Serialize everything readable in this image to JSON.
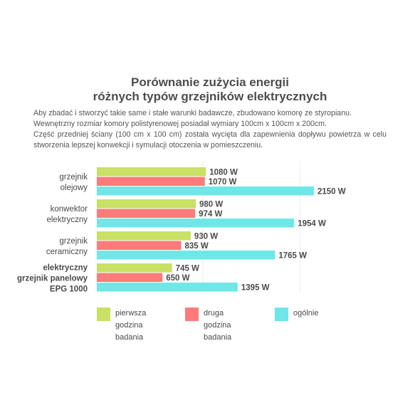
{
  "title_line1": "Porównanie zużycia energii",
  "title_line2": "różnych typów grzejników elektrycznych",
  "description": [
    "Aby zbadać i stworzyć takie same i stałe warunki badawcze, zbudowano komorę ze styropianu.",
    "Wewnętrzny rozmiar komory polistyrenowej posiadał wymiary 100cm x 100cm x 200cm.",
    "Część przedniej ściany (100 cm x 100 cm) została wycięta dla zapewnienia dopływu powietrza w celu stworzenia lepszej konwekcji i symulacji otoczenia w pomieszczeniu."
  ],
  "colors": {
    "first_hour": "#c8e063",
    "second_hour": "#ff7a7a",
    "total": "#6ee7e7"
  },
  "chart_data": {
    "type": "bar",
    "orientation": "horizontal",
    "unit": "W",
    "grid": true,
    "legend_position": "bottom",
    "xlim": [
      0,
      2400
    ],
    "categories": [
      {
        "lines": [
          "grzejnik",
          "olejowy"
        ],
        "bold": false
      },
      {
        "lines": [
          "konwektor",
          "elektryczny"
        ],
        "bold": false
      },
      {
        "lines": [
          "grzejnik",
          "ceramiczny"
        ],
        "bold": false
      },
      {
        "lines": [
          "elektryczny",
          "grzejnik panelowy",
          "EPG 1000"
        ],
        "bold": true
      }
    ],
    "series": [
      {
        "name": [
          "pierwsza",
          "godzina",
          "badania"
        ],
        "color_key": "first_hour",
        "values": [
          1080,
          980,
          930,
          745
        ]
      },
      {
        "name": [
          "druga",
          "godzina",
          "badania"
        ],
        "color_key": "second_hour",
        "values": [
          1070,
          974,
          835,
          650
        ]
      },
      {
        "name": [
          "ogólnie"
        ],
        "color_key": "total",
        "values": [
          2150,
          1954,
          1765,
          1395
        ]
      }
    ]
  }
}
